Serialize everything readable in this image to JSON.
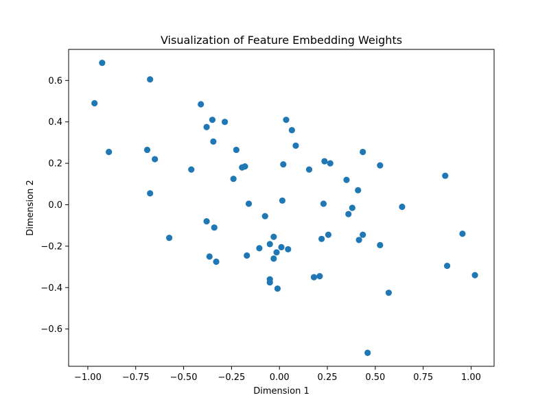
{
  "chart_data": {
    "type": "scatter",
    "title": "Visualization of Feature Embedding Weights",
    "xlabel": "Dimension 1",
    "ylabel": "Dimension 2",
    "xlim": [
      -1.1,
      1.12
    ],
    "ylim": [
      -0.78,
      0.75
    ],
    "xticks": [
      -1.0,
      -0.75,
      -0.5,
      -0.25,
      0.0,
      0.25,
      0.5,
      0.75,
      1.0
    ],
    "xtick_labels": [
      "−1.00",
      "−0.75",
      "−0.50",
      "−0.25",
      "0.00",
      "0.25",
      "0.50",
      "0.75",
      "1.00"
    ],
    "yticks": [
      -0.6,
      -0.4,
      -0.2,
      0.0,
      0.2,
      0.4,
      0.6
    ],
    "ytick_labels": [
      "−0.6",
      "−0.4",
      "−0.2",
      "0.0",
      "0.2",
      "0.4",
      "0.6"
    ],
    "grid": false,
    "marker_color": "#1f77b4",
    "points": [
      {
        "x": -0.925,
        "y": 0.685
      },
      {
        "x": -0.965,
        "y": 0.49
      },
      {
        "x": -0.89,
        "y": 0.255
      },
      {
        "x": -0.675,
        "y": 0.605
      },
      {
        "x": -0.69,
        "y": 0.265
      },
      {
        "x": -0.65,
        "y": 0.22
      },
      {
        "x": -0.675,
        "y": 0.055
      },
      {
        "x": -0.575,
        "y": -0.16
      },
      {
        "x": -0.46,
        "y": 0.17
      },
      {
        "x": -0.41,
        "y": 0.485
      },
      {
        "x": -0.38,
        "y": 0.375
      },
      {
        "x": -0.35,
        "y": 0.41
      },
      {
        "x": -0.345,
        "y": 0.305
      },
      {
        "x": -0.285,
        "y": 0.4
      },
      {
        "x": -0.225,
        "y": 0.265
      },
      {
        "x": -0.195,
        "y": 0.18
      },
      {
        "x": -0.18,
        "y": 0.185
      },
      {
        "x": -0.24,
        "y": 0.125
      },
      {
        "x": -0.16,
        "y": 0.005
      },
      {
        "x": -0.38,
        "y": -0.08
      },
      {
        "x": -0.34,
        "y": -0.11
      },
      {
        "x": -0.365,
        "y": -0.25
      },
      {
        "x": -0.33,
        "y": -0.275
      },
      {
        "x": -0.17,
        "y": -0.245
      },
      {
        "x": -0.105,
        "y": -0.21
      },
      {
        "x": -0.075,
        "y": -0.055
      },
      {
        "x": -0.05,
        "y": -0.19
      },
      {
        "x": -0.03,
        "y": -0.155
      },
      {
        "x": -0.03,
        "y": -0.26
      },
      {
        "x": -0.015,
        "y": -0.23
      },
      {
        "x": 0.01,
        "y": -0.205
      },
      {
        "x": 0.045,
        "y": -0.215
      },
      {
        "x": 0.015,
        "y": 0.02
      },
      {
        "x": 0.02,
        "y": 0.195
      },
      {
        "x": 0.035,
        "y": 0.41
      },
      {
        "x": 0.065,
        "y": 0.36
      },
      {
        "x": 0.085,
        "y": 0.285
      },
      {
        "x": -0.05,
        "y": -0.36
      },
      {
        "x": -0.05,
        "y": -0.375
      },
      {
        "x": -0.01,
        "y": -0.405
      },
      {
        "x": 0.155,
        "y": 0.17
      },
      {
        "x": 0.235,
        "y": 0.21
      },
      {
        "x": 0.265,
        "y": 0.2
      },
      {
        "x": 0.23,
        "y": 0.005
      },
      {
        "x": 0.22,
        "y": -0.165
      },
      {
        "x": 0.255,
        "y": -0.145
      },
      {
        "x": 0.18,
        "y": -0.35
      },
      {
        "x": 0.21,
        "y": -0.345
      },
      {
        "x": 0.35,
        "y": 0.12
      },
      {
        "x": 0.41,
        "y": 0.07
      },
      {
        "x": 0.38,
        "y": -0.015
      },
      {
        "x": 0.36,
        "y": -0.045
      },
      {
        "x": 0.435,
        "y": 0.255
      },
      {
        "x": 0.525,
        "y": 0.19
      },
      {
        "x": 0.415,
        "y": -0.17
      },
      {
        "x": 0.435,
        "y": -0.145
      },
      {
        "x": 0.525,
        "y": -0.195
      },
      {
        "x": 0.57,
        "y": -0.425
      },
      {
        "x": 0.46,
        "y": -0.715
      },
      {
        "x": 0.64,
        "y": -0.01
      },
      {
        "x": 0.865,
        "y": 0.14
      },
      {
        "x": 0.955,
        "y": -0.14
      },
      {
        "x": 0.875,
        "y": -0.295
      },
      {
        "x": 1.02,
        "y": -0.34
      }
    ]
  }
}
